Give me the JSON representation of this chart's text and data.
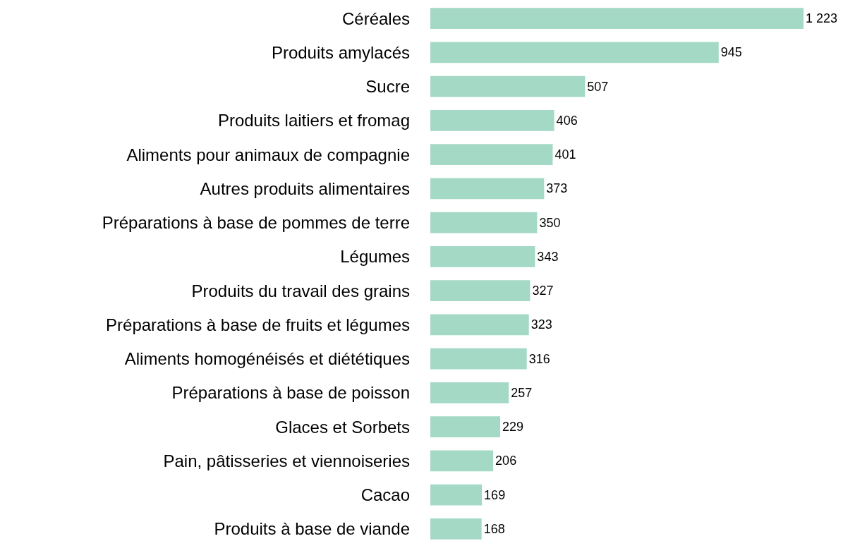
{
  "chart_data": {
    "type": "bar",
    "orientation": "horizontal",
    "categories": [
      "Céréales",
      "Produits amylacés",
      "Sucre",
      "Produits laitiers et fromag",
      "Aliments pour animaux de compagnie",
      "Autres produits alimentaires",
      "Préparations à base de pommes de terre",
      "Légumes",
      "Produits du travail des grains",
      "Préparations à base de fruits et légumes",
      "Aliments homogénéisés et diététiques",
      "Préparations à base de poisson",
      "Glaces et Sorbets",
      "Pain, pâtisseries et viennoiseries",
      "Cacao",
      "Produits à base de viande"
    ],
    "values": [
      1223,
      945,
      507,
      406,
      401,
      373,
      350,
      343,
      327,
      323,
      316,
      257,
      229,
      206,
      169,
      168
    ],
    "value_labels": [
      "1 223",
      "945",
      "507",
      "406",
      "401",
      "373",
      "350",
      "343",
      "327",
      "323",
      "316",
      "257",
      "229",
      "206",
      "169",
      "168"
    ],
    "color": "#a3d9c5"
  }
}
